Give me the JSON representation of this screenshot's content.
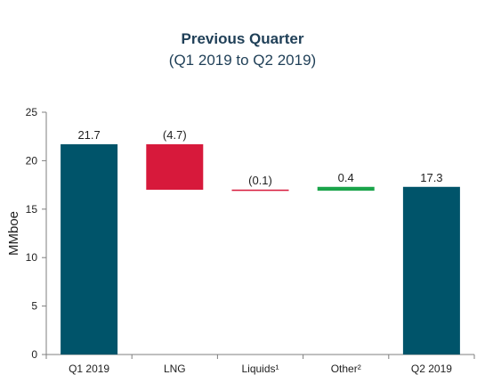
{
  "chart_data": {
    "type": "bar",
    "subtype": "waterfall",
    "title": "Previous Quarter",
    "subtitle": "(Q1 2019 to Q2 2019)",
    "xlabel": "",
    "ylabel": "MMboe",
    "ylim": [
      0,
      25
    ],
    "yticks": [
      "0",
      "5",
      "10",
      "15",
      "20",
      "25"
    ],
    "grid": false,
    "legend": "none",
    "categories": [
      "Q1 2019",
      "LNG",
      "Liquids¹",
      "Other²",
      "Q2 2019"
    ],
    "values": [
      21.7,
      -4.7,
      -0.1,
      0.4,
      17.3
    ],
    "bar_kinds": [
      "total",
      "delta",
      "delta",
      "delta",
      "total"
    ],
    "data_labels": [
      "21.7",
      "(4.7)",
      "(0.1)",
      "0.4",
      "17.3"
    ],
    "colors": {
      "total": "#00546a",
      "decrease": "#d7193b",
      "increase": "#1aa44a",
      "axis": "#7f7f7f",
      "text": "#1f1f1f",
      "title": "#1f3f57"
    }
  }
}
